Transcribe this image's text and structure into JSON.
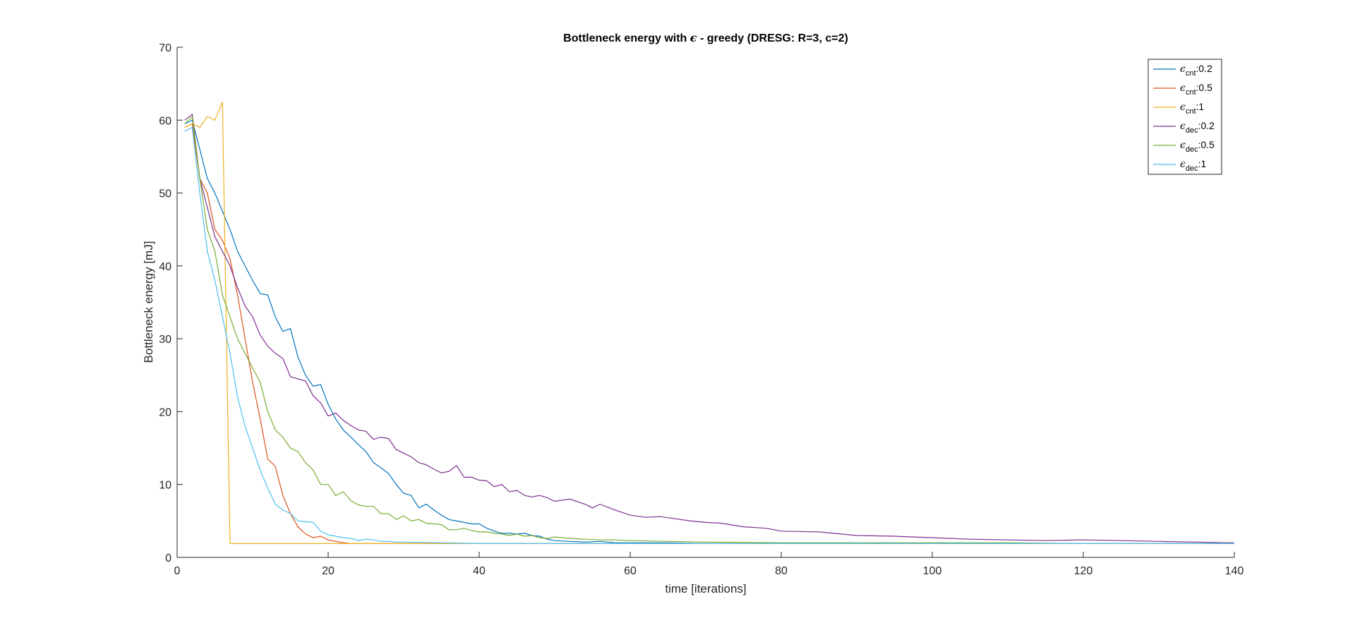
{
  "chart_data": {
    "type": "line",
    "title_prefix": "Bottleneck energy with ",
    "title_symbol": "ϵ",
    "title_suffix": " - greedy (DRESG: R=3, c=2)",
    "xlabel": "time [iterations]",
    "ylabel": "Bottleneck energy [mJ]",
    "xlim": [
      0,
      140
    ],
    "ylim": [
      0,
      70
    ],
    "xticks": [
      0,
      20,
      40,
      60,
      80,
      100,
      120,
      140
    ],
    "yticks": [
      0,
      10,
      20,
      30,
      40,
      50,
      60,
      70
    ],
    "grid": false,
    "legend_position": "top-right",
    "series": [
      {
        "legend_symbol": "ϵ",
        "legend_sub": "cnt",
        "legend_value": ":0.2",
        "color": "#0072BD",
        "x": [
          1,
          2,
          3,
          4,
          5,
          6,
          7,
          8,
          9,
          10,
          11,
          12,
          13,
          14,
          15,
          16,
          17,
          18,
          19,
          20,
          21,
          22,
          23,
          24,
          25,
          26,
          27,
          28,
          29,
          30,
          31,
          32,
          33,
          34,
          35,
          36,
          37,
          38,
          39,
          40,
          41,
          42,
          43,
          44,
          45,
          46,
          47,
          48,
          49,
          50,
          52,
          54,
          56,
          58,
          60,
          65,
          70,
          75,
          80,
          90,
          100,
          110,
          120,
          130,
          140
        ],
        "y": [
          59.5,
          60.0,
          56.0,
          52.0,
          50.0,
          47.5,
          45.0,
          42.0,
          40.0,
          38.0,
          36.2,
          36.0,
          33.0,
          31.0,
          31.4,
          27.5,
          25.0,
          23.5,
          23.7,
          21.0,
          19.0,
          17.5,
          16.5,
          15.5,
          14.5,
          13.0,
          12.3,
          11.5,
          10.0,
          8.8,
          8.5,
          6.8,
          7.3,
          6.5,
          5.8,
          5.2,
          5.0,
          4.8,
          4.6,
          4.6,
          4.0,
          3.6,
          3.3,
          3.3,
          3.2,
          3.3,
          3.0,
          2.9,
          2.5,
          2.3,
          2.2,
          2.1,
          2.2,
          2.0,
          2.0,
          2.0,
          1.9,
          1.9,
          1.9,
          1.9,
          1.9,
          1.9,
          1.9,
          1.9,
          1.9
        ]
      },
      {
        "legend_symbol": "ϵ",
        "legend_sub": "cnt",
        "legend_value": ":0.5",
        "color": "#D95319",
        "x": [
          1,
          2,
          3,
          4,
          5,
          6,
          7,
          8,
          9,
          10,
          11,
          12,
          13,
          14,
          15,
          16,
          17,
          18,
          19,
          20,
          21,
          22,
          23,
          25,
          30,
          40,
          60,
          80,
          100,
          120,
          140
        ],
        "y": [
          59.0,
          59.5,
          52.0,
          50.0,
          45.0,
          43.5,
          41.0,
          36.0,
          30.0,
          24.0,
          19.0,
          13.5,
          12.5,
          8.5,
          6.0,
          4.2,
          3.2,
          2.7,
          2.9,
          2.4,
          2.2,
          2.0,
          1.9,
          1.9,
          1.9,
          1.9,
          1.9,
          1.9,
          1.9,
          1.9,
          1.9
        ]
      },
      {
        "legend_symbol": "ϵ",
        "legend_sub": "cnt",
        "legend_value": ":1",
        "color": "#EDB120",
        "x": [
          1,
          2,
          3,
          4,
          5,
          6,
          7,
          8,
          20,
          40,
          60,
          80,
          100,
          120,
          140
        ],
        "y": [
          59.0,
          59.5,
          59.0,
          60.5,
          60.0,
          62.5,
          1.9,
          1.9,
          1.9,
          1.9,
          1.9,
          1.9,
          1.9,
          1.9,
          1.9
        ]
      },
      {
        "legend_symbol": "ϵ",
        "legend_sub": "dec",
        "legend_value": ":0.2",
        "color": "#7E2F8E",
        "x": [
          1,
          2,
          3,
          4,
          5,
          6,
          7,
          8,
          9,
          10,
          11,
          12,
          13,
          14,
          15,
          16,
          17,
          18,
          19,
          20,
          21,
          22,
          23,
          24,
          25,
          26,
          27,
          28,
          29,
          30,
          31,
          32,
          33,
          34,
          35,
          36,
          37,
          38,
          39,
          40,
          41,
          42,
          43,
          44,
          45,
          46,
          47,
          48,
          49,
          50,
          52,
          54,
          55,
          56,
          58,
          60,
          62,
          64,
          66,
          68,
          70,
          72,
          75,
          78,
          80,
          85,
          90,
          95,
          100,
          105,
          110,
          115,
          120,
          125,
          130,
          135,
          139,
          140
        ],
        "y": [
          60.0,
          60.8,
          52.0,
          48.0,
          44.0,
          42.0,
          40.0,
          37.0,
          34.5,
          33.0,
          30.5,
          29.0,
          28.0,
          27.3,
          24.8,
          24.5,
          24.2,
          22.2,
          21.2,
          19.4,
          19.8,
          18.8,
          18.1,
          17.5,
          17.3,
          16.2,
          16.5,
          16.3,
          14.8,
          14.3,
          13.8,
          13.0,
          12.7,
          12.1,
          11.6,
          11.8,
          12.6,
          11.0,
          11.0,
          10.6,
          10.5,
          9.7,
          10.0,
          9.0,
          9.2,
          8.5,
          8.3,
          8.5,
          8.2,
          7.7,
          8.0,
          7.3,
          6.8,
          7.3,
          6.5,
          5.8,
          5.5,
          5.6,
          5.3,
          5.0,
          4.8,
          4.7,
          4.2,
          4.0,
          3.6,
          3.5,
          3.0,
          2.9,
          2.7,
          2.5,
          2.4,
          2.3,
          2.4,
          2.3,
          2.2,
          2.1,
          2.0,
          2.0
        ]
      },
      {
        "legend_symbol": "ϵ",
        "legend_sub": "dec",
        "legend_value": ":0.5",
        "color": "#77AC30",
        "x": [
          1,
          2,
          3,
          4,
          5,
          6,
          7,
          8,
          9,
          10,
          11,
          12,
          13,
          14,
          15,
          16,
          17,
          18,
          19,
          20,
          21,
          22,
          23,
          24,
          25,
          26,
          27,
          28,
          29,
          30,
          31,
          32,
          33,
          34,
          35,
          36,
          37,
          38,
          39,
          40,
          41,
          42,
          43,
          44,
          45,
          46,
          47,
          48,
          49,
          50,
          52,
          54,
          56,
          58,
          60,
          65,
          70,
          80,
          90,
          100,
          110,
          120,
          130,
          140
        ],
        "y": [
          59.5,
          60.5,
          52.0,
          45.0,
          42.0,
          36.0,
          33.0,
          30.0,
          28.0,
          26.0,
          24.0,
          20.0,
          17.5,
          16.5,
          15.0,
          14.5,
          13.0,
          12.0,
          10.0,
          10.0,
          8.5,
          9.0,
          7.8,
          7.2,
          7.0,
          7.0,
          6.0,
          6.0,
          5.2,
          5.7,
          5.0,
          5.2,
          4.7,
          4.6,
          4.5,
          3.8,
          3.8,
          4.0,
          3.7,
          3.5,
          3.5,
          3.3,
          3.2,
          3.0,
          3.2,
          2.9,
          3.0,
          2.7,
          2.6,
          2.8,
          2.6,
          2.5,
          2.4,
          2.4,
          2.3,
          2.2,
          2.1,
          2.0,
          2.0,
          2.0,
          2.0,
          1.9,
          1.9,
          1.9
        ]
      },
      {
        "legend_symbol": "ϵ",
        "legend_sub": "dec",
        "legend_value": ":1",
        "color": "#4DBEEE",
        "x": [
          1,
          2,
          3,
          4,
          5,
          6,
          7,
          8,
          9,
          10,
          11,
          12,
          13,
          14,
          15,
          16,
          17,
          18,
          19,
          20,
          21,
          22,
          23,
          24,
          25,
          26,
          27,
          28,
          29,
          30,
          35,
          40,
          50,
          60,
          80,
          100,
          120,
          140
        ],
        "y": [
          58.5,
          59.0,
          50.0,
          42.0,
          38.0,
          33.0,
          28.0,
          22.0,
          18.0,
          15.0,
          12.0,
          9.5,
          7.3,
          6.5,
          6.0,
          5.0,
          4.9,
          4.8,
          3.6,
          3.1,
          2.9,
          2.7,
          2.6,
          2.3,
          2.5,
          2.4,
          2.2,
          2.2,
          2.1,
          2.1,
          2.0,
          1.9,
          1.9,
          1.9,
          1.9,
          1.9,
          1.9,
          1.9
        ]
      }
    ]
  }
}
